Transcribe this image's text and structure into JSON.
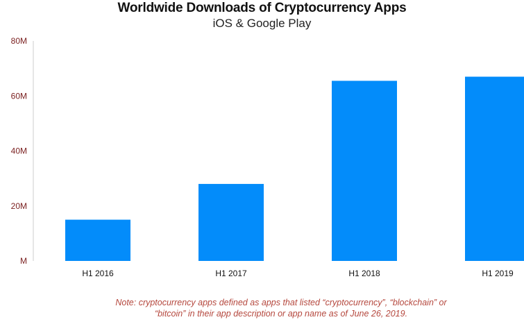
{
  "header": {
    "title": "Worldwide Downloads of Cryptocurrency Apps",
    "subtitle": "iOS & Google Play"
  },
  "footer": {
    "note_line1": "Note: cryptocurrency apps defined as apps that listed “cryptocurrency”, “blockchain” or",
    "note_line2": "“bitcoin” in their app description or app name as of June 26, 2019."
  },
  "colors": {
    "bar": "#038cfa",
    "ytick": "#7a1f1f",
    "xtick": "#111111",
    "axis": "#cccccc"
  },
  "chart_data": {
    "type": "bar",
    "title": "Worldwide Downloads of Cryptocurrency Apps",
    "subtitle": "iOS & Google Play",
    "xlabel": "",
    "ylabel": "",
    "categories": [
      "H1 2016",
      "H1 2017",
      "H1 2018",
      "H1 2019"
    ],
    "values": [
      15,
      28,
      65.5,
      67
    ],
    "ylim": [
      0,
      80
    ],
    "yticks": [
      0,
      20,
      40,
      60,
      80
    ],
    "ytick_labels": [
      "M",
      "20M",
      "40M",
      "60M",
      "80M"
    ],
    "grid": false,
    "legend": "none"
  }
}
